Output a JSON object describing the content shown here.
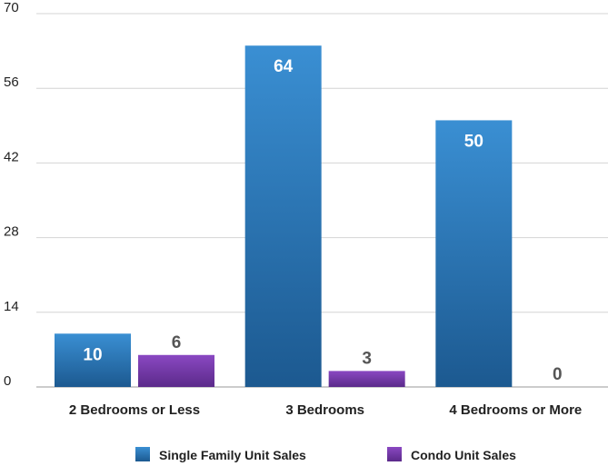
{
  "chart_data": {
    "type": "bar",
    "categories": [
      "2 Bedrooms or Less",
      "3 Bedrooms",
      "4 Bedrooms or More"
    ],
    "series": [
      {
        "name": "Single Family Unit Sales",
        "values": [
          10,
          64,
          50
        ],
        "color": "#2a7bc0",
        "color_dark": "#1d5b92",
        "label_color": "#ffffff"
      },
      {
        "name": "Condo Unit Sales",
        "values": [
          6,
          3,
          0
        ],
        "color": "#7f3fb4",
        "color_dark": "#5e2c8f",
        "label_color": "#555555"
      }
    ],
    "yticks": [
      0,
      14,
      28,
      42,
      56,
      70
    ],
    "ylim": [
      0,
      70
    ],
    "grid": true,
    "legend": "bottom"
  }
}
